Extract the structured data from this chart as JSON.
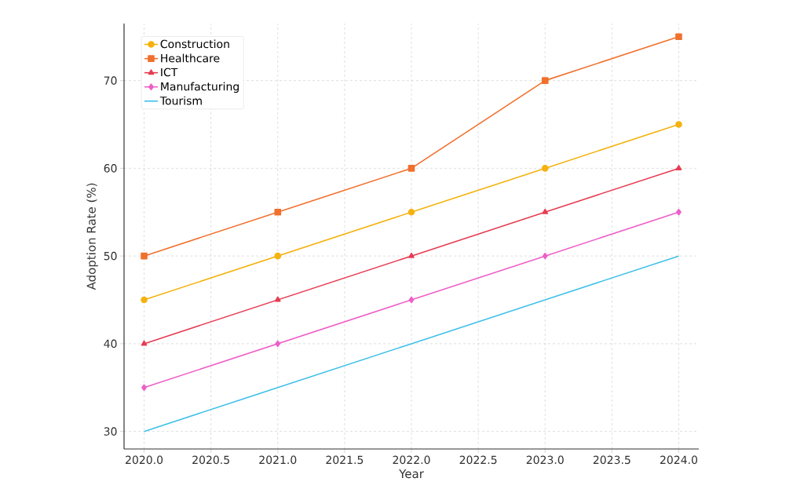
{
  "chart_data": {
    "type": "line",
    "xlabel": "Year",
    "ylabel": "Adoption Rate (%)",
    "x": [
      2020,
      2021,
      2022,
      2023,
      2024
    ],
    "series": [
      {
        "name": "Construction",
        "color": "#f5b20f",
        "marker": "circle",
        "values": [
          45,
          50,
          55,
          60,
          65
        ]
      },
      {
        "name": "Healthcare",
        "color": "#f0702c",
        "marker": "square",
        "values": [
          50,
          55,
          60,
          70,
          75
        ]
      },
      {
        "name": "ICT",
        "color": "#e63c52",
        "marker": "triangle",
        "values": [
          40,
          45,
          50,
          55,
          60
        ]
      },
      {
        "name": "Manufacturing",
        "color": "#ee5fc8",
        "marker": "diamond",
        "values": [
          35,
          40,
          45,
          50,
          55
        ]
      },
      {
        "name": "Tourism",
        "color": "#3fc0ea",
        "marker": "none",
        "values": [
          30,
          35,
          40,
          45,
          50
        ]
      }
    ],
    "xlim": [
      2019.85,
      2024.15
    ],
    "ylim": [
      28,
      76.5
    ],
    "xticks": [
      {
        "value": 2020,
        "label": "2020.0"
      },
      {
        "value": 2020.5,
        "label": "2020.5"
      },
      {
        "value": 2021,
        "label": "2021.0"
      },
      {
        "value": 2021.5,
        "label": "2021.5"
      },
      {
        "value": 2022,
        "label": "2022.0"
      },
      {
        "value": 2022.5,
        "label": "2022.5"
      },
      {
        "value": 2023,
        "label": "2023.0"
      },
      {
        "value": 2023.5,
        "label": "2023.5"
      },
      {
        "value": 2024,
        "label": "2024.0"
      }
    ],
    "yticks": [
      30,
      40,
      50,
      60,
      70
    ],
    "grid": true,
    "legend": "top left",
    "line_style": "solid"
  }
}
